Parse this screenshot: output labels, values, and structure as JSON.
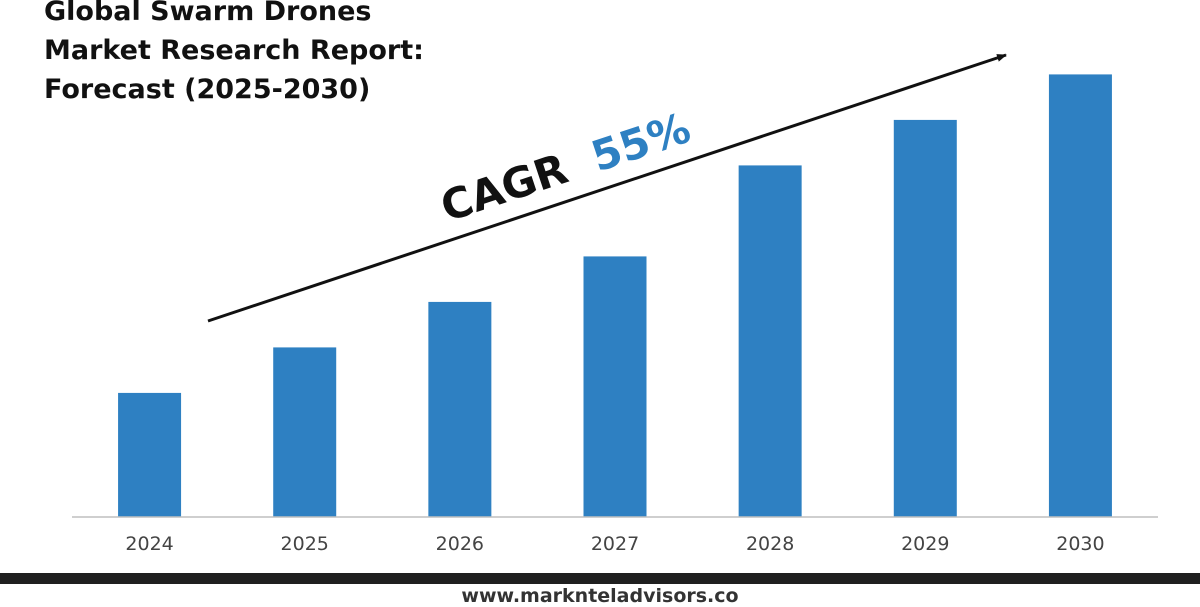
{
  "title_lines": [
    "Global Swarm Drones",
    "Market Research Report:",
    "Forecast (2025-2030)"
  ],
  "cagr": {
    "label": "CAGR",
    "value": "55%"
  },
  "colors": {
    "bar": "#2e80c2",
    "cagr_value": "#2e80c2",
    "text": "#111111",
    "axis": "#bfbfbf"
  },
  "footer": {
    "url": "www.marknteladvisors.co"
  },
  "chart_data": {
    "type": "bar",
    "title": "Global Swarm Drones Market Research Report: Forecast (2025-2030)",
    "categories": [
      "2024",
      "2025",
      "2026",
      "2027",
      "2028",
      "2029",
      "2030"
    ],
    "values": [
      30,
      41,
      52,
      63,
      85,
      96,
      107
    ],
    "xlabel": "",
    "ylabel": "",
    "ylim": [
      0,
      110
    ],
    "grid": false,
    "legend": "none",
    "annotations": [
      "CAGR 55%"
    ]
  }
}
